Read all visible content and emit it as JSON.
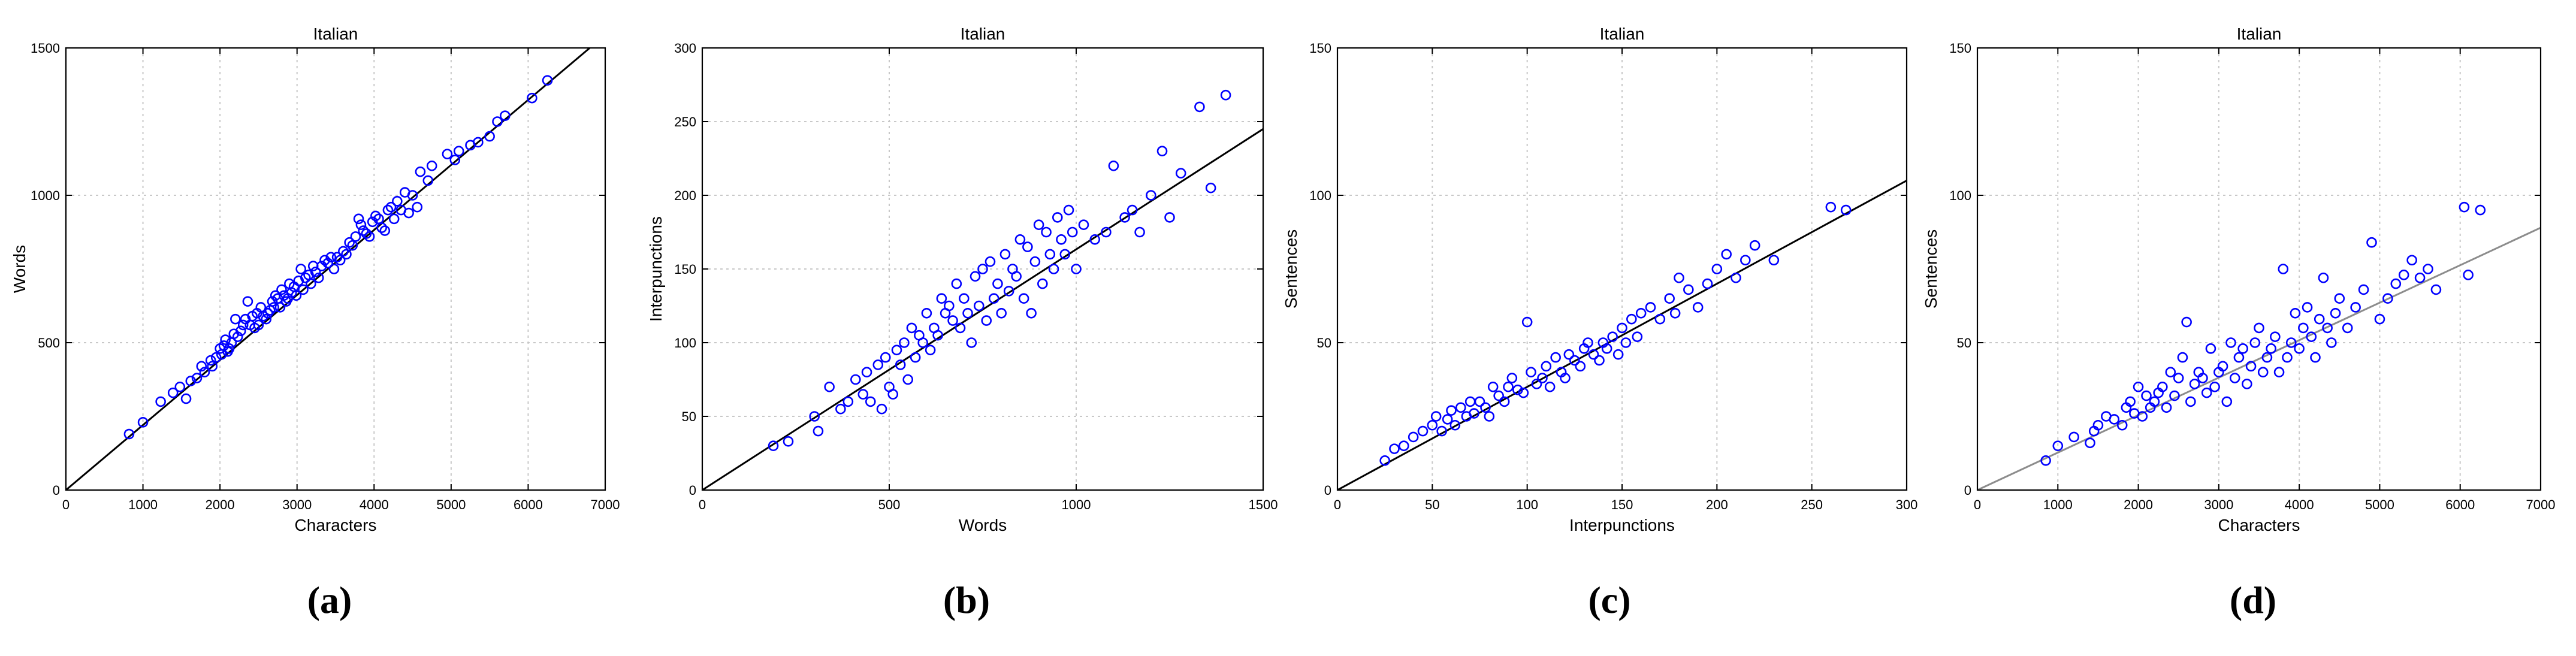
{
  "figure": {
    "captions": [
      "(a)",
      "(b)",
      "(c)",
      "(d)"
    ]
  },
  "colors": {
    "marker": "#0000ff",
    "fit_line": "#000000",
    "fit_line_light": "#8c8c8c",
    "grid": "#c8c8c8",
    "axes": "#000000"
  },
  "chart_data": [
    {
      "type": "scatter",
      "title": "Italian",
      "xlabel": "Characters",
      "ylabel": "Words",
      "xlim": [
        0,
        7000
      ],
      "ylim": [
        0,
        1500
      ],
      "xticks": [
        0,
        1000,
        2000,
        3000,
        4000,
        5000,
        6000,
        7000
      ],
      "yticks": [
        0,
        500,
        1000,
        1500
      ],
      "grid": true,
      "fit_line": {
        "x": [
          0,
          6800
        ],
        "y": [
          0,
          1500
        ],
        "style": "solid"
      },
      "series": [
        {
          "x": [
            820,
            1000,
            1230,
            1390,
            1480,
            1560,
            1620,
            1700,
            1760,
            1800,
            1880,
            1900,
            1950,
            2000,
            2020,
            2050,
            2070,
            2100,
            2120,
            2150,
            2180,
            2200,
            2230,
            2270,
            2300,
            2330,
            2360,
            2390,
            2420,
            2450,
            2480,
            2500,
            2530,
            2560,
            2600,
            2620,
            2650,
            2680,
            2700,
            2720,
            2750,
            2780,
            2800,
            2830,
            2860,
            2880,
            2900,
            2930,
            2960,
            2990,
            3020,
            3050,
            3080,
            3110,
            3150,
            3180,
            3210,
            3240,
            3280,
            3320,
            3360,
            3400,
            3440,
            3480,
            3520,
            3560,
            3600,
            3640,
            3680,
            3720,
            3760,
            3800,
            3830,
            3860,
            3900,
            3940,
            3980,
            4020,
            4060,
            4100,
            4140,
            4180,
            4220,
            4260,
            4300,
            4350,
            4400,
            4450,
            4500,
            4560,
            4600,
            4700,
            4750,
            4950,
            5050,
            5100,
            5250,
            5350,
            5500,
            5600,
            5700,
            6050,
            6250
          ],
          "y": [
            190,
            230,
            300,
            330,
            350,
            310,
            370,
            380,
            420,
            400,
            440,
            420,
            450,
            480,
            460,
            490,
            510,
            470,
            480,
            500,
            530,
            580,
            520,
            540,
            560,
            580,
            640,
            560,
            590,
            550,
            600,
            560,
            620,
            590,
            580,
            600,
            610,
            640,
            620,
            660,
            650,
            620,
            680,
            660,
            640,
            650,
            700,
            670,
            690,
            660,
            710,
            750,
            680,
            720,
            730,
            700,
            760,
            740,
            720,
            760,
            780,
            770,
            790,
            750,
            790,
            780,
            810,
            800,
            840,
            830,
            860,
            920,
            900,
            880,
            870,
            860,
            910,
            930,
            920,
            890,
            880,
            950,
            960,
            920,
            980,
            950,
            1010,
            940,
            1000,
            960,
            1080,
            1050,
            1100,
            1140,
            1120,
            1150,
            1170,
            1180,
            1200,
            1250,
            1270,
            1330,
            1390
          ]
        }
      ]
    },
    {
      "type": "scatter",
      "title": "Italian",
      "xlabel": "Words",
      "ylabel": "Interpunctions",
      "xlim": [
        0,
        1500
      ],
      "ylim": [
        0,
        300
      ],
      "xticks": [
        0,
        500,
        1000,
        1500
      ],
      "yticks": [
        0,
        50,
        100,
        150,
        200,
        250,
        300
      ],
      "grid": true,
      "fit_line": {
        "x": [
          0,
          1500
        ],
        "y": [
          0,
          245
        ],
        "style": "solid"
      },
      "series": [
        {
          "x": [
            190,
            230,
            300,
            310,
            340,
            370,
            390,
            410,
            430,
            440,
            450,
            470,
            480,
            490,
            500,
            510,
            520,
            530,
            540,
            550,
            560,
            570,
            580,
            590,
            600,
            610,
            620,
            630,
            640,
            650,
            660,
            670,
            680,
            690,
            700,
            710,
            720,
            730,
            740,
            750,
            760,
            770,
            780,
            790,
            800,
            810,
            820,
            830,
            840,
            850,
            860,
            870,
            880,
            890,
            900,
            910,
            920,
            930,
            940,
            950,
            960,
            970,
            980,
            990,
            1000,
            1020,
            1050,
            1080,
            1100,
            1130,
            1150,
            1170,
            1200,
            1230,
            1250,
            1280,
            1330,
            1360,
            1400
          ],
          "y": [
            30,
            33,
            50,
            40,
            70,
            55,
            60,
            75,
            65,
            80,
            60,
            85,
            55,
            90,
            70,
            65,
            95,
            85,
            100,
            75,
            110,
            90,
            105,
            100,
            120,
            95,
            110,
            105,
            130,
            120,
            125,
            115,
            140,
            110,
            130,
            120,
            100,
            145,
            125,
            150,
            115,
            155,
            130,
            140,
            120,
            160,
            135,
            150,
            145,
            170,
            130,
            165,
            120,
            155,
            180,
            140,
            175,
            160,
            150,
            185,
            170,
            160,
            190,
            175,
            150,
            180,
            170,
            175,
            220,
            185,
            190,
            175,
            200,
            230,
            185,
            215,
            260,
            205,
            268
          ]
        }
      ]
    },
    {
      "type": "scatter",
      "title": "Italian",
      "xlabel": "Interpunctions",
      "ylabel": "Sentences",
      "xlim": [
        0,
        300
      ],
      "ylim": [
        0,
        150
      ],
      "xticks": [
        0,
        50,
        100,
        150,
        200,
        250,
        300
      ],
      "yticks": [
        0,
        50,
        100,
        150
      ],
      "grid": true,
      "fit_line": {
        "x": [
          0,
          300
        ],
        "y": [
          0,
          105
        ],
        "style": "solid"
      },
      "series": [
        {
          "x": [
            25,
            30,
            35,
            40,
            45,
            50,
            52,
            55,
            58,
            60,
            62,
            65,
            68,
            70,
            72,
            75,
            78,
            80,
            82,
            85,
            88,
            90,
            92,
            95,
            98,
            100,
            102,
            105,
            108,
            110,
            112,
            115,
            118,
            120,
            122,
            125,
            128,
            130,
            132,
            135,
            138,
            140,
            142,
            145,
            148,
            150,
            152,
            155,
            158,
            160,
            165,
            170,
            175,
            178,
            180,
            185,
            190,
            195,
            200,
            205,
            210,
            215,
            220,
            230,
            260,
            268
          ],
          "y": [
            10,
            14,
            15,
            18,
            20,
            22,
            25,
            20,
            24,
            27,
            22,
            28,
            25,
            30,
            26,
            30,
            28,
            25,
            35,
            32,
            30,
            35,
            38,
            34,
            33,
            57,
            40,
            36,
            38,
            42,
            35,
            45,
            40,
            38,
            46,
            44,
            42,
            48,
            50,
            46,
            44,
            50,
            48,
            52,
            46,
            55,
            50,
            58,
            52,
            60,
            62,
            58,
            65,
            60,
            72,
            68,
            62,
            70,
            75,
            80,
            72,
            78,
            83,
            78,
            96,
            95
          ]
        }
      ]
    },
    {
      "type": "scatter",
      "title": "Italian",
      "xlabel": "Characters",
      "ylabel": "Sentences",
      "xlim": [
        0,
        7000
      ],
      "ylim": [
        0,
        150
      ],
      "xticks": [
        0,
        1000,
        2000,
        3000,
        4000,
        5000,
        6000,
        7000
      ],
      "yticks": [
        0,
        50,
        100,
        150
      ],
      "grid": true,
      "fit_line": {
        "x": [
          0,
          7000
        ],
        "y": [
          0,
          89
        ],
        "style": "solid"
      },
      "series": [
        {
          "x": [
            850,
            1000,
            1200,
            1400,
            1450,
            1500,
            1600,
            1700,
            1800,
            1850,
            1900,
            1950,
            2000,
            2050,
            2100,
            2150,
            2200,
            2250,
            2300,
            2350,
            2400,
            2450,
            2500,
            2550,
            2600,
            2650,
            2700,
            2750,
            2800,
            2850,
            2900,
            2950,
            3000,
            3050,
            3100,
            3150,
            3200,
            3250,
            3300,
            3350,
            3400,
            3450,
            3500,
            3550,
            3600,
            3650,
            3700,
            3750,
            3800,
            3850,
            3900,
            3950,
            4000,
            4050,
            4100,
            4150,
            4200,
            4250,
            4300,
            4350,
            4400,
            4450,
            4500,
            4600,
            4700,
            4800,
            4900,
            5000,
            5100,
            5200,
            5300,
            5400,
            5500,
            5600,
            5700,
            6050,
            6100,
            6250
          ],
          "y": [
            10,
            15,
            18,
            16,
            20,
            22,
            25,
            24,
            22,
            28,
            30,
            26,
            35,
            25,
            32,
            28,
            30,
            33,
            35,
            28,
            40,
            32,
            38,
            45,
            57,
            30,
            36,
            40,
            38,
            33,
            48,
            35,
            40,
            42,
            30,
            50,
            38,
            45,
            48,
            36,
            42,
            50,
            55,
            40,
            45,
            48,
            52,
            40,
            75,
            45,
            50,
            60,
            48,
            55,
            62,
            52,
            45,
            58,
            72,
            55,
            50,
            60,
            65,
            55,
            62,
            68,
            84,
            58,
            65,
            70,
            73,
            78,
            72,
            75,
            68,
            96,
            73,
            95
          ]
        }
      ]
    }
  ]
}
